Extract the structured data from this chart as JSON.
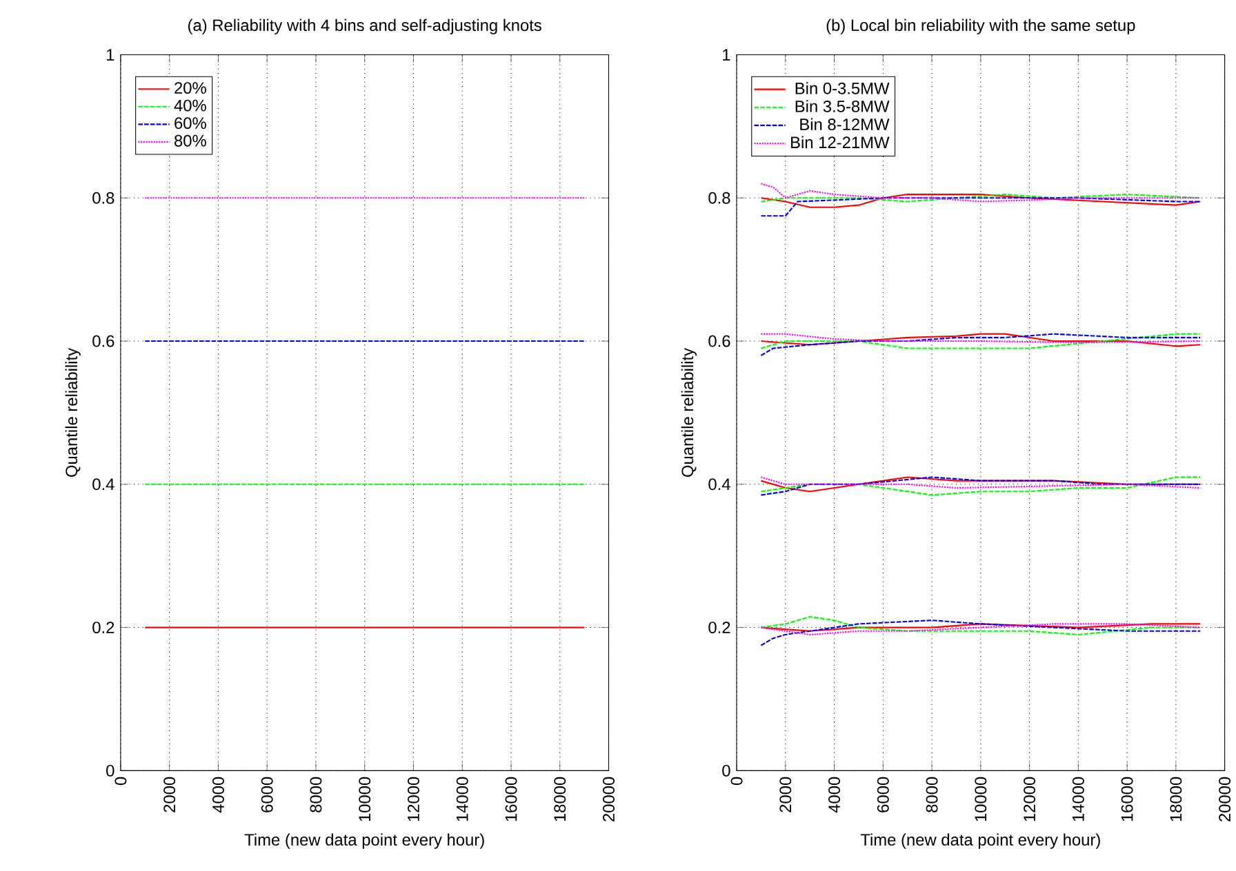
{
  "chart_data": [
    {
      "type": "line",
      "title": "(a) Reliability with 4 bins and self-adjusting knots",
      "xlabel": "Time (new data point every hour)",
      "ylabel": "Quantile reliability",
      "xlim": [
        0,
        20000
      ],
      "ylim": [
        0,
        1
      ],
      "xticks": [
        0,
        2000,
        4000,
        6000,
        8000,
        10000,
        12000,
        14000,
        16000,
        18000,
        20000
      ],
      "yticks": [
        0,
        0.2,
        0.4,
        0.6,
        0.8,
        1
      ],
      "grid": true,
      "legend": "top left",
      "x": [
        1000,
        19000
      ],
      "series": [
        {
          "name": "20%",
          "color": "#ff0000",
          "line_style": "solid",
          "values": [
            0.2,
            0.2
          ]
        },
        {
          "name": "40%",
          "color": "#00ff00",
          "line_style": "dashed",
          "values": [
            0.4,
            0.4
          ]
        },
        {
          "name": "60%",
          "color": "#0000ff",
          "line_style": "dashed",
          "values": [
            0.6,
            0.6
          ]
        },
        {
          "name": "80%",
          "color": "#ff00ff",
          "line_style": "dotted",
          "values": [
            0.8,
            0.8
          ]
        }
      ]
    },
    {
      "type": "line",
      "title": "(b) Local bin reliability with the same setup",
      "xlabel": "Time (new data point every hour)",
      "ylabel": "Quantile reliability",
      "xlim": [
        0,
        20000
      ],
      "ylim": [
        0,
        1
      ],
      "xticks": [
        0,
        2000,
        4000,
        6000,
        8000,
        10000,
        12000,
        14000,
        16000,
        18000,
        20000
      ],
      "yticks": [
        0,
        0.2,
        0.4,
        0.6,
        0.8,
        1
      ],
      "grid": true,
      "legend": "top left",
      "series": [
        {
          "name": "Bin 0-3.5MW",
          "color": "#ff0000",
          "line_style": "solid",
          "x": [
            1000,
            2000,
            3000,
            4000,
            5000,
            6000,
            7000,
            9000,
            10000,
            12000,
            15000,
            18000,
            19000
          ],
          "values": [
            0.8,
            0.795,
            0.787,
            0.787,
            0.79,
            0.8,
            0.805,
            0.805,
            0.805,
            0.8,
            0.795,
            0.79,
            0.795
          ]
        },
        {
          "name": "Bin 3.5-8MW",
          "color": "#00ff00",
          "line_style": "dashed",
          "x": [
            1000,
            2000,
            5000,
            7000,
            9000,
            11000,
            13000,
            16000,
            19000
          ],
          "values": [
            0.795,
            0.8,
            0.8,
            0.795,
            0.8,
            0.805,
            0.8,
            0.805,
            0.8
          ]
        },
        {
          "name": "Bin 8-12MW",
          "color": "#0000ff",
          "line_style": "dashed",
          "x": [
            1000,
            1500,
            2000,
            2500,
            4000,
            6000,
            8000,
            10000,
            14000,
            18000,
            19000
          ],
          "values": [
            0.775,
            0.775,
            0.775,
            0.795,
            0.797,
            0.8,
            0.8,
            0.8,
            0.8,
            0.795,
            0.795
          ]
        },
        {
          "name": "Bin 12-21MW",
          "color": "#ff00ff",
          "line_style": "dotted",
          "x": [
            1000,
            1500,
            2000,
            3000,
            4000,
            6000,
            8000,
            10000,
            12000,
            14000,
            17000,
            19000
          ],
          "values": [
            0.82,
            0.815,
            0.8,
            0.81,
            0.805,
            0.8,
            0.8,
            0.795,
            0.797,
            0.8,
            0.8,
            0.8
          ]
        },
        {
          "color": "#ff0000",
          "line_style": "solid",
          "x": [
            1000,
            3000,
            5000,
            7000,
            9000,
            10000,
            11000,
            13000,
            16000,
            18000,
            19000
          ],
          "values": [
            0.6,
            0.595,
            0.6,
            0.605,
            0.607,
            0.61,
            0.61,
            0.6,
            0.6,
            0.593,
            0.595
          ]
        },
        {
          "color": "#00ff00",
          "line_style": "dashed",
          "x": [
            1000,
            2000,
            5000,
            7000,
            9000,
            12000,
            15000,
            18000,
            19000
          ],
          "values": [
            0.59,
            0.6,
            0.6,
            0.59,
            0.59,
            0.59,
            0.6,
            0.61,
            0.61
          ]
        },
        {
          "color": "#0000ff",
          "line_style": "dashed",
          "x": [
            1000,
            1500,
            3000,
            5000,
            7000,
            9000,
            11000,
            13000,
            16000,
            19000
          ],
          "values": [
            0.58,
            0.59,
            0.595,
            0.6,
            0.6,
            0.605,
            0.605,
            0.61,
            0.605,
            0.605
          ]
        },
        {
          "color": "#ff00ff",
          "line_style": "dotted",
          "x": [
            1000,
            2000,
            4000,
            6000,
            8000,
            10000,
            14000,
            19000
          ],
          "values": [
            0.61,
            0.61,
            0.603,
            0.6,
            0.6,
            0.6,
            0.598,
            0.6
          ]
        },
        {
          "color": "#ff0000",
          "line_style": "solid",
          "x": [
            1000,
            2000,
            3000,
            5000,
            7000,
            9000,
            11000,
            13000,
            16000,
            19000
          ],
          "values": [
            0.405,
            0.395,
            0.39,
            0.4,
            0.41,
            0.405,
            0.405,
            0.405,
            0.4,
            0.4
          ]
        },
        {
          "color": "#00ff00",
          "line_style": "dashed",
          "x": [
            1000,
            3000,
            5000,
            7000,
            8000,
            10000,
            12000,
            14000,
            16000,
            18000,
            19000
          ],
          "values": [
            0.39,
            0.4,
            0.4,
            0.39,
            0.385,
            0.39,
            0.39,
            0.395,
            0.395,
            0.41,
            0.41
          ]
        },
        {
          "color": "#0000ff",
          "line_style": "dashed",
          "x": [
            1000,
            2000,
            3000,
            5000,
            8000,
            10000,
            13000,
            15000,
            19000
          ],
          "values": [
            0.385,
            0.39,
            0.4,
            0.4,
            0.41,
            0.405,
            0.405,
            0.4,
            0.4
          ]
        },
        {
          "color": "#ff00ff",
          "line_style": "dotted",
          "x": [
            1000,
            2000,
            4000,
            7000,
            9000,
            12000,
            16000,
            19000
          ],
          "values": [
            0.41,
            0.4,
            0.4,
            0.4,
            0.395,
            0.397,
            0.4,
            0.395
          ]
        },
        {
          "color": "#ff0000",
          "line_style": "solid",
          "x": [
            1000,
            3000,
            5000,
            8000,
            10000,
            14000,
            17000,
            19000
          ],
          "values": [
            0.2,
            0.195,
            0.2,
            0.2,
            0.205,
            0.2,
            0.205,
            0.205
          ]
        },
        {
          "color": "#00ff00",
          "line_style": "dashed",
          "x": [
            1000,
            2000,
            3000,
            4000,
            5000,
            7000,
            9000,
            12000,
            14000,
            17000,
            19000
          ],
          "values": [
            0.2,
            0.205,
            0.215,
            0.21,
            0.2,
            0.195,
            0.195,
            0.195,
            0.19,
            0.2,
            0.2
          ]
        },
        {
          "color": "#0000ff",
          "line_style": "dashed",
          "x": [
            1000,
            1500,
            2000,
            3000,
            5000,
            8000,
            10000,
            13000,
            16000,
            19000
          ],
          "values": [
            0.175,
            0.185,
            0.19,
            0.195,
            0.205,
            0.21,
            0.205,
            0.2,
            0.195,
            0.195
          ]
        },
        {
          "color": "#ff00ff",
          "line_style": "dotted",
          "x": [
            1000,
            2000,
            3000,
            5000,
            7000,
            10000,
            13000,
            16000,
            19000
          ],
          "values": [
            0.2,
            0.195,
            0.19,
            0.195,
            0.195,
            0.2,
            0.205,
            0.205,
            0.2
          ]
        }
      ]
    }
  ]
}
